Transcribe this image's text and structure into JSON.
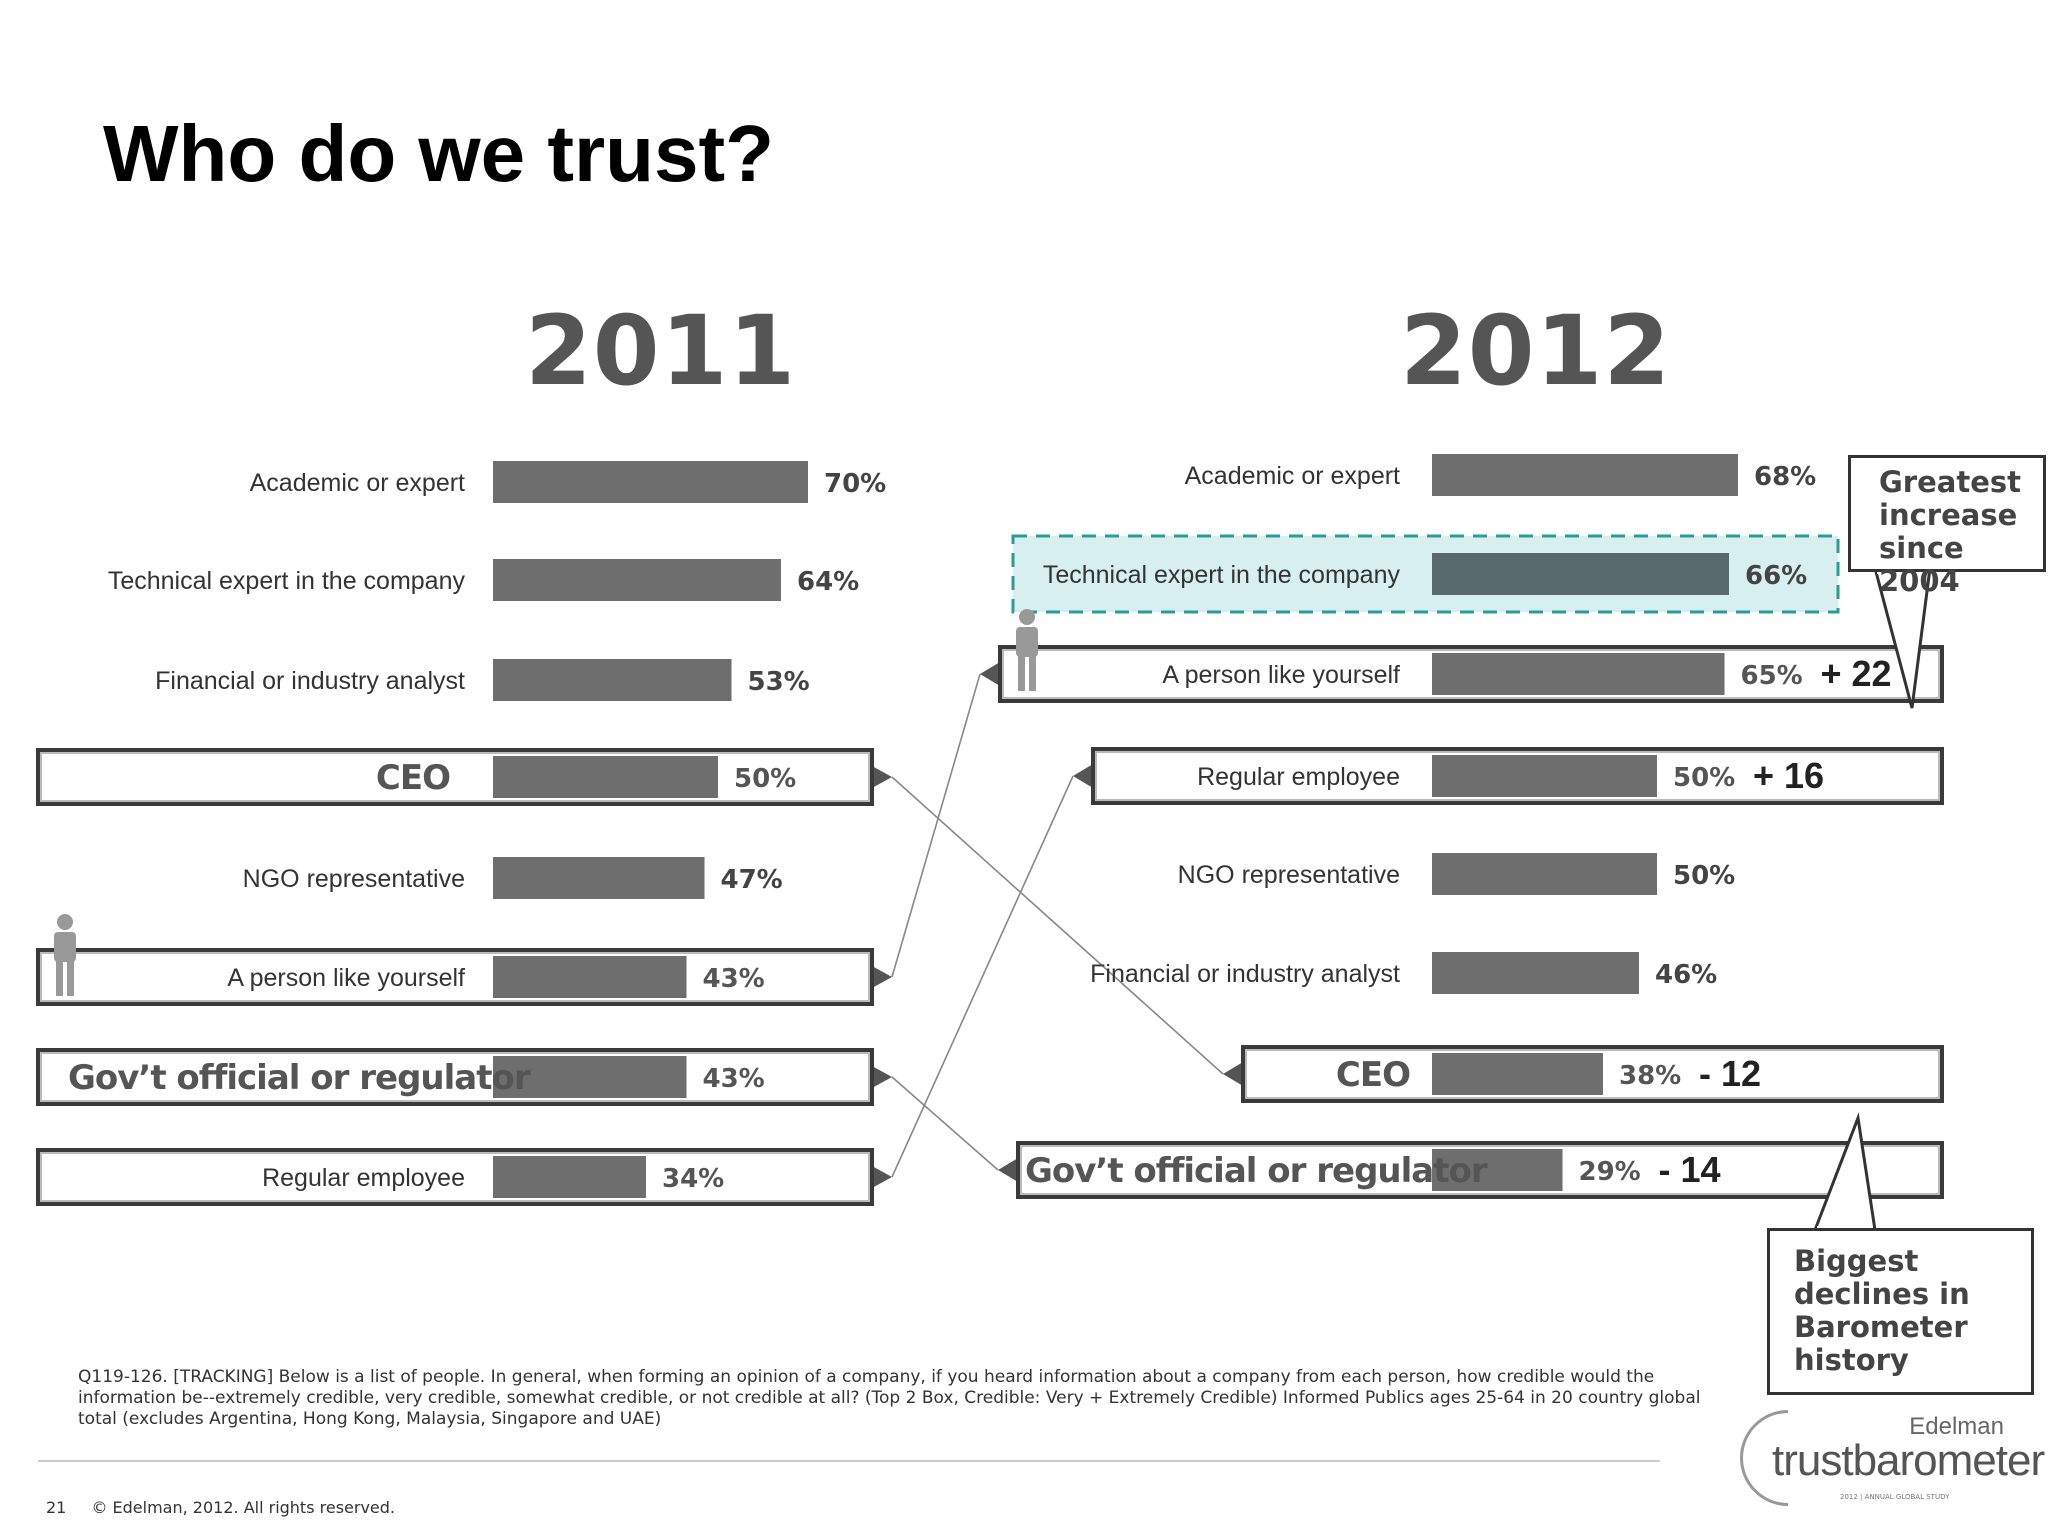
{
  "title": "Who do we trust?",
  "chart_data": [
    {
      "type": "bar",
      "title": "2011",
      "categories": [
        "Academic or expert",
        "Technical expert in the company",
        "Financial or industry analyst",
        "CEO",
        "NGO representative",
        "A person like yourself",
        "Gov’t official or regulator",
        "Regular employee"
      ],
      "values": [
        70,
        64,
        53,
        50,
        47,
        43,
        43,
        34
      ],
      "value_labels": [
        "70%",
        "64%",
        "53%",
        "50%",
        "47%",
        "43%",
        "43%",
        "34%"
      ],
      "highlighted": [
        "CEO",
        "A person like yourself",
        "Gov’t official or regulator",
        "Regular employee"
      ]
    },
    {
      "type": "bar",
      "title": "2012",
      "categories": [
        "Academic or expert",
        "Technical expert in the company",
        "A person like yourself",
        "Regular employee",
        "NGO representative",
        "Financial or industry analyst",
        "CEO",
        "Gov’t official or regulator"
      ],
      "values": [
        68,
        66,
        65,
        50,
        50,
        46,
        38,
        29
      ],
      "value_labels": [
        "68%",
        "66%",
        "65%",
        "50%",
        "50%",
        "46%",
        "38%",
        "29%"
      ],
      "changes": [
        "",
        "",
        "+ 22",
        "+ 16",
        "",
        "",
        "- 12",
        "- 14"
      ],
      "highlighted": [
        "Technical expert in the company",
        "A person like yourself",
        "Regular employee",
        "CEO",
        "Gov’t official or regulator"
      ]
    }
  ],
  "callouts": {
    "increase": "Greatest increase since 2004",
    "decline": "Biggest declines in Barometer history"
  },
  "footnote": "Q119-126. [TRACKING] Below is a list of people. In general, when forming an opinion of a company, if you heard information about a company from each person, how credible would the information be--extremely credible, very credible, somewhat credible, or not credible at all? (Top 2 Box, Credible: Very + Extremely Credible) Informed Publics ages 25-64 in 20 country global total (excludes Argentina, Hong Kong, Malaysia, Singapore and UAE)",
  "footer": {
    "page_number": "21",
    "copyright": "© Edelman, 2012. All rights reserved."
  },
  "logo": {
    "brand": "Edelman",
    "wordmark": "trustbarometer",
    "subtitle": "2012 | ANNUAL GLOBAL STUDY"
  },
  "colors": {
    "bar": "#6e6e6e",
    "bar_highlight": "#57696b",
    "highlight_fill": "#d7efef",
    "highlight_border": "#2a9d98",
    "box_border": "#3a3a3a",
    "year_text": "#555555"
  }
}
